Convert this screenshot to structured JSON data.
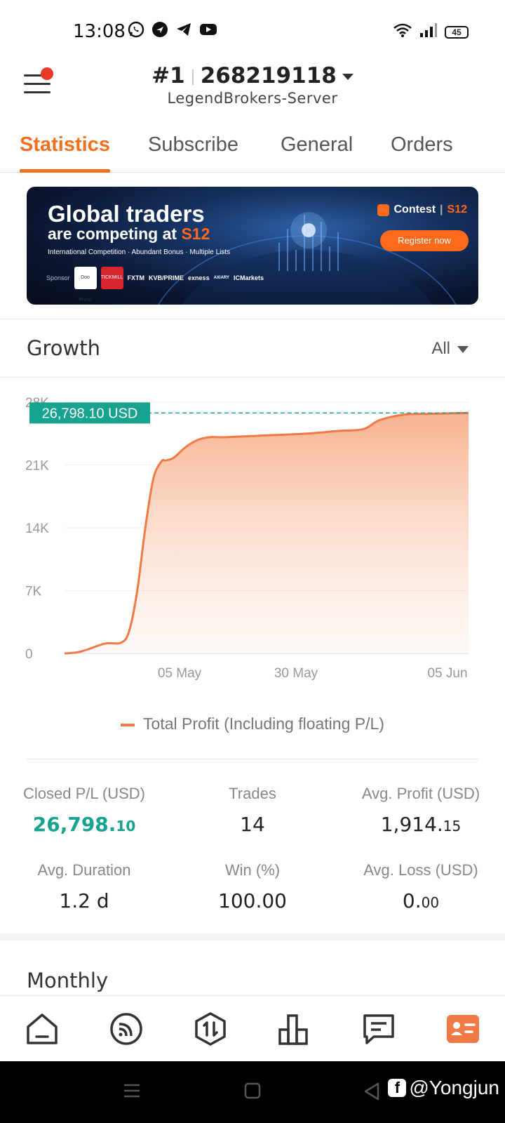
{
  "status_bar": {
    "time": "13:08",
    "battery": "45",
    "app_icons": [
      "whatsapp-icon",
      "chatgpt-icon",
      "telegram-icon",
      "youtube-icon"
    ]
  },
  "header": {
    "account_rank": "#1",
    "account_number": "268219118",
    "server": "LegendBrokers-Server"
  },
  "tabs": [
    {
      "label": "Statistics",
      "active": true
    },
    {
      "label": "Subscribe",
      "active": false
    },
    {
      "label": "General",
      "active": false
    },
    {
      "label": "Orders",
      "active": false
    }
  ],
  "banner": {
    "title_line1": "Global traders",
    "title_line2_prefix": "are competing at ",
    "title_line2_brand": "S12",
    "subtitle": "International Competition · Abundant Bonus · Multiple Lists",
    "sponsor_label": "Sponsor",
    "sponsors": [
      "Doo Prime",
      "TICKMILL",
      "FXTM",
      "KVB/PRIME",
      "exness",
      "AXIARY",
      "ICMarkets"
    ],
    "contest_label": "Contest",
    "contest_brand": "S12",
    "register_label": "Register now"
  },
  "growth": {
    "title": "Growth",
    "range": "All"
  },
  "chart_data": {
    "type": "area",
    "current_value_label": "26,798.10 USD",
    "ylim": [
      0,
      28000
    ],
    "yticks": [
      0,
      7000,
      14000,
      21000,
      28000
    ],
    "ytick_labels": [
      "0",
      "7K",
      "14K",
      "21K",
      "28K"
    ],
    "xtick_labels": [
      "05 May",
      "30 May",
      "05 Jun"
    ],
    "series": [
      {
        "name": "Total Profit (Including floating P/L)",
        "color": "#f07a45",
        "x_fraction": [
          0.0,
          0.04,
          0.1,
          0.14,
          0.16,
          0.18,
          0.2,
          0.22,
          0.24,
          0.25,
          0.27,
          0.3,
          0.33,
          0.36,
          0.4,
          0.5,
          0.6,
          0.68,
          0.74,
          0.78,
          0.84,
          0.9,
          1.0
        ],
        "values": [
          0,
          200,
          1100,
          1200,
          2500,
          7000,
          14000,
          19500,
          21400,
          21500,
          21800,
          23000,
          23800,
          24100,
          24100,
          24300,
          24500,
          24800,
          25000,
          26000,
          26600,
          26700,
          26798.1
        ]
      }
    ]
  },
  "legend": {
    "label": "Total Profit (Including floating P/L)"
  },
  "stats": [
    {
      "label": "Closed P/L (USD)",
      "value_main": "26,798.",
      "value_frac": "10",
      "green": true
    },
    {
      "label": "Trades",
      "value_main": "14",
      "value_frac": ""
    },
    {
      "label": "Avg. Profit (USD)",
      "value_main": "1,914.",
      "value_frac": "15"
    },
    {
      "label": "Avg. Duration",
      "value_main": "1.2 d",
      "value_frac": ""
    },
    {
      "label": "Win (%)",
      "value_main": "100.00",
      "value_frac": ""
    },
    {
      "label": "Avg. Loss (USD)",
      "value_main": "0.",
      "value_frac": "00"
    }
  ],
  "monthly": {
    "title": "Monthly"
  },
  "bottom_nav": [
    "home-icon",
    "feed-icon",
    "trade-icon",
    "chart-icon",
    "messages-icon",
    "profile-card-icon"
  ],
  "watermark": "@Yongjun"
}
